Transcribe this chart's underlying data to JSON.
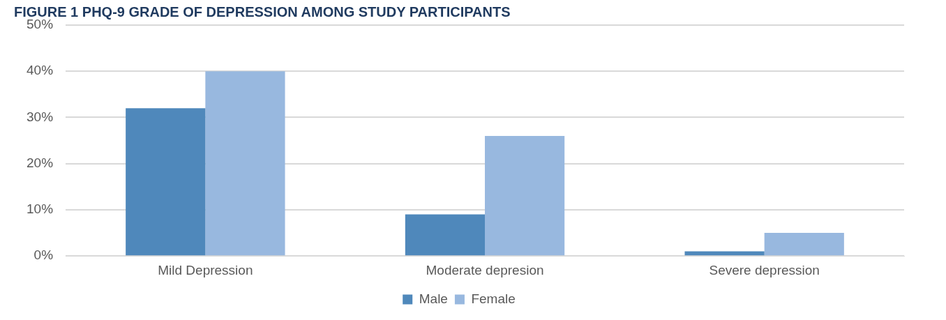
{
  "chart_data": {
    "type": "bar",
    "title": "FIGURE 1 PHQ-9 GRADE OF DEPRESSION AMONG STUDY PARTICIPANTS",
    "categories": [
      "Mild Depression",
      "Moderate depresion",
      "Severe depression"
    ],
    "series": [
      {
        "name": "Male",
        "color": "#4f88bb",
        "values": [
          32,
          9,
          1
        ]
      },
      {
        "name": "Female",
        "color": "#98b8df",
        "values": [
          40,
          26,
          5
        ]
      }
    ],
    "ylim": [
      0,
      50
    ],
    "yticks": [
      {
        "value": 0,
        "label": "0%"
      },
      {
        "value": 10,
        "label": "10%"
      },
      {
        "value": 20,
        "label": "20%"
      },
      {
        "value": 30,
        "label": "30%"
      },
      {
        "value": 40,
        "label": "40%"
      },
      {
        "value": 50,
        "label": "50%"
      }
    ],
    "grid": "y",
    "legend": "bottom"
  }
}
